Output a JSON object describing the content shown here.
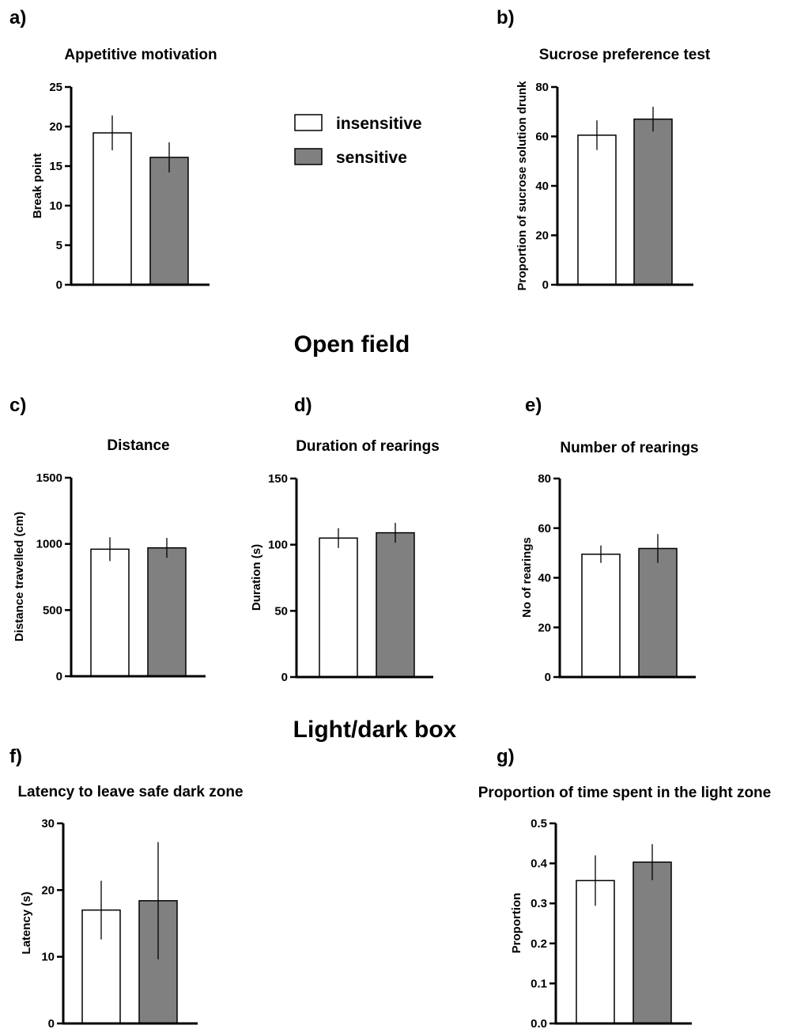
{
  "sections": {
    "open_field": "Open field",
    "light_dark": "Light/dark box"
  },
  "legend": [
    {
      "label": "insensitive",
      "color": "#ffffff"
    },
    {
      "label": "sensitive",
      "color": "#808080"
    }
  ],
  "colors": {
    "insensitive": "#ffffff",
    "sensitive": "#808080",
    "axis": "#000000"
  },
  "chart_data": [
    {
      "letter": "a)",
      "type": "bar",
      "title": "Appetitive motivation",
      "ylabel": "Break point",
      "categories": [
        "insensitive",
        "sensitive"
      ],
      "values": [
        19.2,
        16.1
      ],
      "errors": [
        2.2,
        1.9
      ],
      "ylim": [
        0,
        25
      ],
      "yticks": [
        0,
        5,
        10,
        15,
        20,
        25
      ]
    },
    {
      "letter": "b)",
      "type": "bar",
      "title": "Sucrose preference test",
      "ylabel": "Proportion of sucrose solution drunk",
      "categories": [
        "insensitive",
        "sensitive"
      ],
      "values": [
        60.5,
        67
      ],
      "errors": [
        6,
        5
      ],
      "ylim": [
        0,
        80
      ],
      "yticks": [
        0,
        20,
        40,
        60,
        80
      ]
    },
    {
      "letter": "c)",
      "type": "bar",
      "title": "Distance",
      "ylabel": "Distance travelled (cm)",
      "categories": [
        "insensitive",
        "sensitive"
      ],
      "values": [
        960,
        970
      ],
      "errors": [
        90,
        75
      ],
      "ylim": [
        0,
        1500
      ],
      "yticks": [
        0,
        500,
        1000,
        1500
      ]
    },
    {
      "letter": "d)",
      "type": "bar",
      "title": "Duration of rearings",
      "ylabel": "Duration (s)",
      "categories": [
        "insensitive",
        "sensitive"
      ],
      "values": [
        105,
        109
      ],
      "errors": [
        7.5,
        7.5
      ],
      "ylim": [
        0,
        150
      ],
      "yticks": [
        0,
        50,
        100,
        150
      ]
    },
    {
      "letter": "e)",
      "type": "bar",
      "title": "Number of rearings",
      "ylabel": "No of rearings",
      "categories": [
        "insensitive",
        "sensitive"
      ],
      "values": [
        49.5,
        51.8
      ],
      "errors": [
        3.5,
        5.8
      ],
      "ylim": [
        0,
        80
      ],
      "yticks": [
        0,
        20,
        40,
        60,
        80
      ]
    },
    {
      "letter": "f)",
      "type": "bar",
      "title": "Latency to leave safe dark zone",
      "ylabel": "Latency (s)",
      "categories": [
        "insensitive",
        "sensitive"
      ],
      "values": [
        17.0,
        18.4
      ],
      "errors": [
        4.4,
        8.8
      ],
      "ylim": [
        0,
        30
      ],
      "yticks": [
        0,
        10,
        20,
        30
      ]
    },
    {
      "letter": "g)",
      "type": "bar",
      "title": "Proportion of time spent in the light zone",
      "ylabel": "Proportion",
      "categories": [
        "insensitive",
        "sensitive"
      ],
      "values": [
        0.357,
        0.403
      ],
      "errors": [
        0.063,
        0.045
      ],
      "ylim": [
        0,
        0.5
      ],
      "yticks": [
        0.0,
        0.1,
        0.2,
        0.3,
        0.4,
        0.5
      ],
      "tick_decimals": 1
    }
  ]
}
